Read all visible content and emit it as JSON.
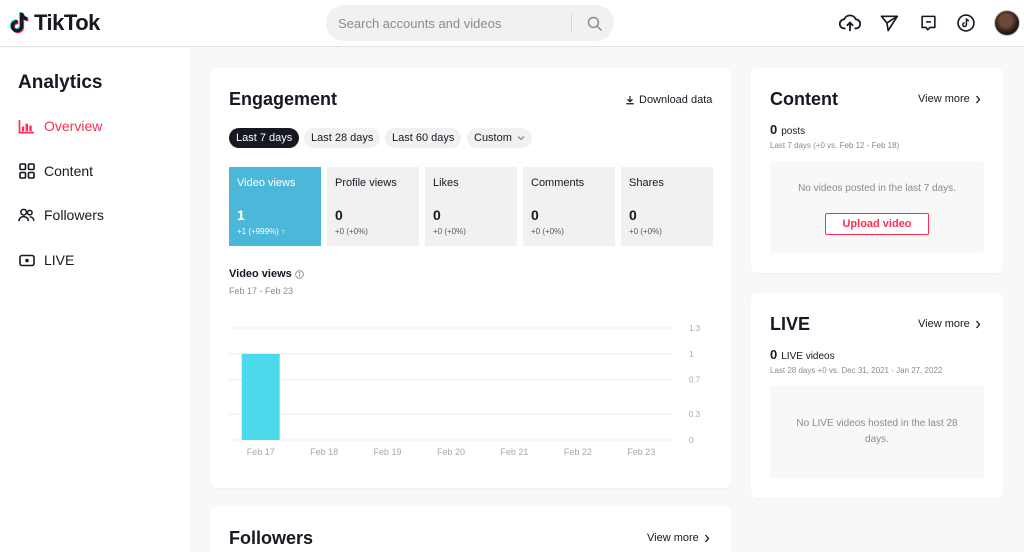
{
  "header": {
    "logo_text": "TikTok",
    "search_placeholder": "Search accounts and videos",
    "icons": [
      "upload-icon",
      "send-icon",
      "inbox-icon",
      "tiktok-icon",
      "avatar"
    ]
  },
  "sidebar": {
    "title": "Analytics",
    "items": [
      {
        "label": "Overview",
        "icon": "chart-icon",
        "active": true
      },
      {
        "label": "Content",
        "icon": "grid-icon",
        "active": false
      },
      {
        "label": "Followers",
        "icon": "users-icon",
        "active": false
      },
      {
        "label": "LIVE",
        "icon": "live-icon",
        "active": false
      }
    ]
  },
  "engagement": {
    "title": "Engagement",
    "download_label": "Download data",
    "ranges": [
      "Last 7 days",
      "Last 28 days",
      "Last 60 days",
      "Custom"
    ],
    "active_range": "Last 7 days",
    "metrics": [
      {
        "label": "Video views",
        "value": "1",
        "change": "+1 (+999%) ↑"
      },
      {
        "label": "Profile views",
        "value": "0",
        "change": "+0 (+0%)"
      },
      {
        "label": "Likes",
        "value": "0",
        "change": "+0 (+0%)"
      },
      {
        "label": "Comments",
        "value": "0",
        "change": "+0 (+0%)"
      },
      {
        "label": "Shares",
        "value": "0",
        "change": "+0 (+0%)"
      }
    ],
    "chart_title": "Video views",
    "chart_range": "Feb 17 - Feb 23"
  },
  "chart_data": {
    "type": "bar",
    "categories": [
      "Feb 17",
      "Feb 18",
      "Feb 19",
      "Feb 20",
      "Feb 21",
      "Feb 22",
      "Feb 23"
    ],
    "values": [
      1,
      0,
      0,
      0,
      0,
      0,
      0
    ],
    "ylim": [
      0,
      1.3
    ],
    "yticks": [
      "1.3",
      "1",
      "0.7",
      "0.3",
      "0"
    ],
    "ytick_values": [
      1.3,
      1,
      0.7,
      0.3,
      0
    ],
    "grid": true,
    "bar_color": "#4dd9ec"
  },
  "content": {
    "title": "Content",
    "view_more": "View more",
    "count": "0",
    "count_label": "posts",
    "compare": "Last 7 days (+0 vs. Feb 12 - Feb 18)",
    "empty": "No videos posted in the last 7 days.",
    "upload_label": "Upload video"
  },
  "live": {
    "title": "LIVE",
    "view_more": "View more",
    "count": "0",
    "count_label": "LIVE videos",
    "compare": "Last 28 days +0 vs. Dec 31, 2021 - Jan 27, 2022",
    "empty": "No LIVE videos hosted in the last 28 days."
  },
  "followers": {
    "title": "Followers",
    "view_more": "View more"
  },
  "colors": {
    "accent": "#fe2c55",
    "active_metric": "#4cb8d9",
    "bar": "#4dd9ec"
  }
}
